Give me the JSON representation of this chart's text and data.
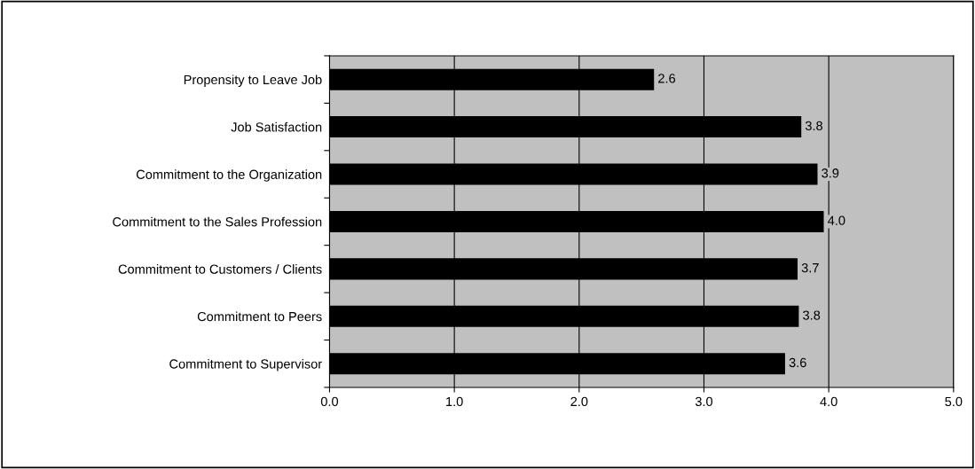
{
  "chart_data": {
    "type": "bar",
    "orientation": "horizontal",
    "categories": [
      "Propensity to Leave Job",
      "Job Satisfaction",
      "Commitment to the Organization",
      "Commitment to the Sales Profession",
      "Commitment to Customers / Clients",
      "Commitment to Peers",
      "Commitment to Supervisor"
    ],
    "values": [
      2.6,
      3.78,
      3.91,
      3.96,
      3.75,
      3.76,
      3.65
    ],
    "value_labels": [
      "2.6",
      "3.8",
      "3.9",
      "4.0",
      "3.7",
      "3.8",
      "3.6"
    ],
    "color": "#000000",
    "xlim": [
      0,
      5
    ],
    "xticks": [
      {
        "value": 0,
        "label": "0.0"
      },
      {
        "value": 1,
        "label": "1.0"
      },
      {
        "value": 2,
        "label": "2.0"
      },
      {
        "value": 3,
        "label": "3.0"
      },
      {
        "value": 4,
        "label": "4.0"
      },
      {
        "value": 5,
        "label": "5.0"
      }
    ],
    "grid": "x"
  }
}
